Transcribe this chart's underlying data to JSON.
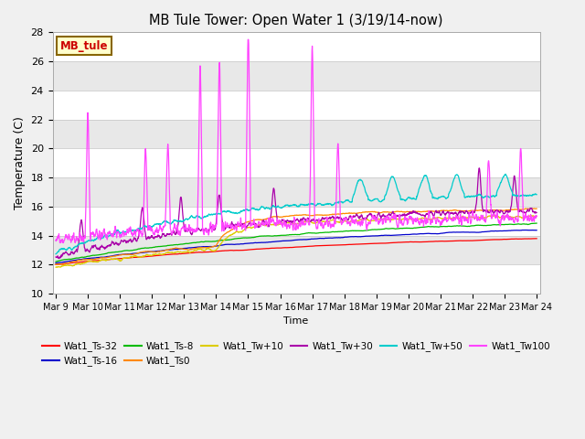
{
  "title": "MB Tule Tower: Open Water 1 (3/19/14-now)",
  "xlabel": "Time",
  "ylabel": "Temperature (C)",
  "ylim": [
    10,
    28
  ],
  "yticks": [
    10,
    12,
    14,
    16,
    18,
    20,
    22,
    24,
    26,
    28
  ],
  "series_colors": {
    "Wat1_Ts-32": "#ff0000",
    "Wat1_Ts-16": "#0000cc",
    "Wat1_Ts-8": "#00bb00",
    "Wat1_Ts0": "#ff8800",
    "Wat1_Tw+10": "#ddcc00",
    "Wat1_Tw+30": "#aa00aa",
    "Wat1_Tw+50": "#00cccc",
    "Wat1_Tw100": "#ff44ff"
  },
  "xtick_labels": [
    "Mar 9",
    "Mar 10",
    "Mar 11",
    "Mar 12",
    "Mar 13",
    "Mar 14",
    "Mar 15",
    "Mar 16",
    "Mar 17",
    "Mar 18",
    "Mar 19",
    "Mar 20",
    "Mar 21",
    "Mar 22",
    "Mar 23",
    "Mar 24"
  ],
  "annotation_label": "MB_tule",
  "annotation_color": "#cc0000",
  "annotation_bg": "#ffffcc",
  "annotation_border": "#886600",
  "band_colors": [
    "#ffffff",
    "#e8e8e8"
  ]
}
